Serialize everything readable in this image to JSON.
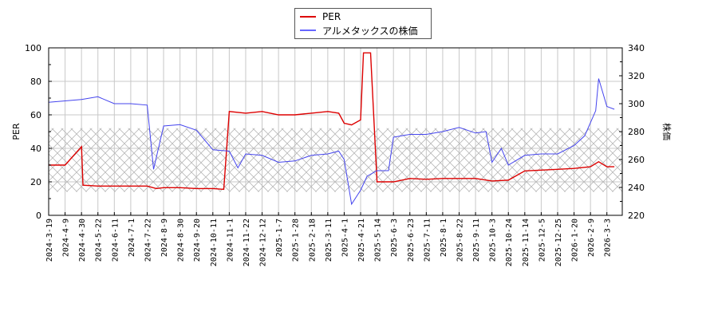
{
  "legend": {
    "items": [
      {
        "label": "PER",
        "color": "#dd0000"
      },
      {
        "label": "アルメタックスの株価",
        "color": "#4444ee"
      }
    ]
  },
  "axes": {
    "left_label": "PER",
    "right_label": "株価",
    "left_ticks": [
      "0",
      "20",
      "40",
      "60",
      "80",
      "100"
    ],
    "right_ticks": [
      "220",
      "240",
      "260",
      "280",
      "300",
      "320",
      "340"
    ]
  },
  "chart_data": {
    "type": "line",
    "title": "",
    "xlabel": "",
    "ylabel": "PER",
    "y2label": "株価",
    "ylim": [
      0,
      100
    ],
    "y2lim": [
      220,
      340
    ],
    "grid": true,
    "legend_position": "top-center",
    "shaded_band": {
      "axis": "left",
      "from": 14,
      "to": 52,
      "style": "crosshatch"
    },
    "x_tick_labels": [
      "2024-3-19",
      "2024-4-9",
      "2024-4-30",
      "2024-5-22",
      "2024-6-11",
      "2024-7-1",
      "2024-7-22",
      "2024-8-9",
      "2024-8-30",
      "2024-9-20",
      "2024-10-11",
      "2024-11-1",
      "2024-11-22",
      "2024-12-12",
      "2025-1-7",
      "2025-1-28",
      "2025-2-18",
      "2025-3-11",
      "2025-4-1",
      "2025-4-21",
      "2025-5-14",
      "2025-6-3",
      "2025-6-23",
      "2025-7-11",
      "2025-8-1",
      "2025-8-22",
      "2025-9-11",
      "2025-10-3",
      "2025-10-24",
      "2025-11-14",
      "2025-12-5",
      "2025-12-25",
      "2026-1-20",
      "2026-2-9",
      "2026-3-3"
    ],
    "series": [
      {
        "name": "PER",
        "axis": "left",
        "color": "#dd0000",
        "x": [
          "2024-3-19",
          "2024-4-9",
          "2024-4-30",
          "2024-5-2",
          "2024-5-22",
          "2024-6-11",
          "2024-7-1",
          "2024-7-22",
          "2024-8-1",
          "2024-8-9",
          "2024-8-30",
          "2024-9-20",
          "2024-10-11",
          "2024-10-25",
          "2024-11-1",
          "2024-11-22",
          "2024-12-12",
          "2025-1-7",
          "2025-1-28",
          "2025-2-18",
          "2025-3-11",
          "2025-3-25",
          "2025-4-1",
          "2025-4-10",
          "2025-4-21",
          "2025-4-25",
          "2025-5-5",
          "2025-5-14",
          "2025-6-3",
          "2025-6-23",
          "2025-7-11",
          "2025-8-1",
          "2025-8-22",
          "2025-9-11",
          "2025-10-3",
          "2025-10-24",
          "2025-11-14",
          "2025-12-5",
          "2025-12-25",
          "2026-1-20",
          "2026-2-9",
          "2026-2-20",
          "2026-3-3",
          "2026-3-13"
        ],
        "values": [
          30,
          30,
          41,
          18,
          17.5,
          17.5,
          17.5,
          17.5,
          16,
          16.5,
          16.5,
          16,
          16,
          15.5,
          62,
          61,
          62,
          60,
          60,
          61,
          62,
          61,
          55,
          54,
          57,
          97,
          97,
          20,
          20,
          22,
          21.5,
          22,
          22,
          22,
          20.5,
          21,
          26.5,
          27,
          27.5,
          28,
          29,
          32,
          29,
          29
        ]
      },
      {
        "name": "アルメタックスの株価",
        "axis": "right",
        "color": "#4444ee",
        "x": [
          "2024-3-19",
          "2024-4-9",
          "2024-4-30",
          "2024-5-22",
          "2024-6-11",
          "2024-7-1",
          "2024-7-22",
          "2024-7-29",
          "2024-8-9",
          "2024-8-30",
          "2024-9-20",
          "2024-10-11",
          "2024-11-1",
          "2024-11-12",
          "2024-11-22",
          "2024-12-12",
          "2025-1-7",
          "2025-1-28",
          "2025-2-18",
          "2025-3-11",
          "2025-3-25",
          "2025-4-1",
          "2025-4-10",
          "2025-4-21",
          "2025-4-30",
          "2025-5-14",
          "2025-5-28",
          "2025-6-3",
          "2025-6-23",
          "2025-7-11",
          "2025-8-1",
          "2025-8-22",
          "2025-9-11",
          "2025-9-25",
          "2025-10-3",
          "2025-10-15",
          "2025-10-24",
          "2025-11-14",
          "2025-12-5",
          "2025-12-25",
          "2026-1-20",
          "2026-2-2",
          "2026-2-16",
          "2026-2-20",
          "2026-3-3",
          "2026-3-13"
        ],
        "values": [
          301,
          302,
          303,
          305,
          300,
          300,
          299,
          253,
          284,
          285,
          281,
          267,
          266,
          254,
          264,
          263,
          258,
          259,
          263,
          264,
          266,
          260,
          228,
          238,
          248,
          252,
          252,
          276,
          278,
          278,
          280,
          283,
          279,
          280,
          258,
          268,
          256,
          263,
          264,
          264,
          270,
          277,
          295,
          318,
          298,
          296
        ]
      }
    ]
  }
}
